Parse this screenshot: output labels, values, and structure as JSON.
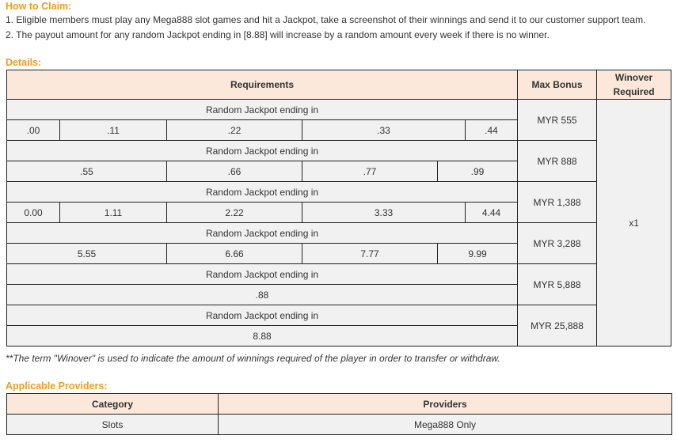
{
  "how_to_claim": {
    "title": "How to Claim:",
    "items": [
      "1. Eligible members must play any Mega888 slot games and hit a Jackpot, take a screenshot of their winnings and send it to our customer support team.",
      "2. The payout amount for any random Jackpot ending in [8.88] will increase by a random amount every week if there is no winner."
    ]
  },
  "details": {
    "title": "Details:",
    "headers": {
      "requirements": "Requirements",
      "max_bonus": "Max Bonus",
      "winover": "Winover Required"
    },
    "group_label": "Random Jackpot ending in",
    "winover_value": "x1",
    "groups": [
      {
        "endings": [
          ".00",
          ".11",
          ".22",
          ".33",
          ".44"
        ],
        "bonus": "MYR 555"
      },
      {
        "endings": [
          ".55",
          ".66",
          ".77",
          ".99"
        ],
        "bonus": "MYR 888"
      },
      {
        "endings": [
          "0.00",
          "1.11",
          "2.22",
          "3.33",
          "4.44"
        ],
        "bonus": "MYR 1,388"
      },
      {
        "endings": [
          "5.55",
          "6.66",
          "7.77",
          "9.99"
        ],
        "bonus": "MYR 3,288"
      },
      {
        "endings": [
          ".88"
        ],
        "bonus": "MYR 5,888"
      },
      {
        "endings": [
          "8.88"
        ],
        "bonus": "MYR 25,888"
      }
    ],
    "note": "**The term \"Winover\" is used to indicate the amount of winnings required of the player in order to transfer or withdraw."
  },
  "providers": {
    "title": "Applicable Providers:",
    "headers": [
      "Category",
      "Providers"
    ],
    "rows": [
      [
        "Slots",
        "Mega888 Only"
      ]
    ]
  },
  "colors": {
    "accent": "#f39c1f",
    "header_bg": "#fbe8da",
    "cell_bg": "#f1f1f1"
  }
}
